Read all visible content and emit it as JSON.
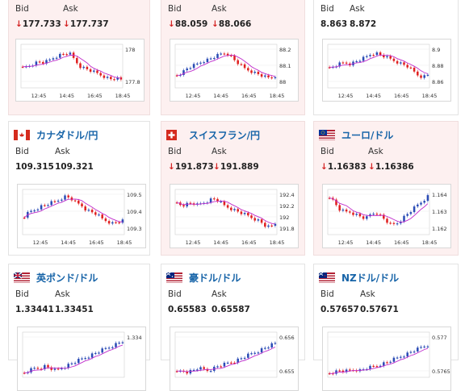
{
  "colors": {
    "up": "#2a4bb5",
    "down": "#e02020",
    "ma": "#c02ccc",
    "link": "#1764a8",
    "bg_down": "#fdf0f0"
  },
  "labels": {
    "bid": "Bid",
    "ask": "Ask"
  },
  "cards": [
    {
      "id": "c0",
      "name": "",
      "bid": "177.733",
      "ask": "177.737",
      "trend": "down",
      "y_ticks": [
        "178",
        "177.8"
      ],
      "x_ticks": [
        "12:45",
        "14:45",
        "16:45",
        "18:45"
      ]
    },
    {
      "id": "c1",
      "name": "",
      "bid": "88.059",
      "ask": "88.066",
      "trend": "down",
      "y_ticks": [
        "88.2",
        "88.1",
        "88"
      ],
      "x_ticks": [
        "12:45",
        "14:45",
        "16:45",
        "18:45"
      ]
    },
    {
      "id": "c2",
      "name": "",
      "bid": "8.863",
      "ask": "8.872",
      "trend": "none",
      "y_ticks": [
        "8.9",
        "8.88",
        "8.86"
      ],
      "x_ticks": [
        "12:45",
        "14:45",
        "16:45",
        "18:45"
      ]
    },
    {
      "id": "c3",
      "name": "カナダドル/円",
      "flag_icon": "canada-flag-icon",
      "bid": "109.315",
      "ask": "109.321",
      "trend": "none",
      "y_ticks": [
        "109.5",
        "109.4",
        "109.3"
      ],
      "x_ticks": [
        "12:45",
        "14:45",
        "16:45",
        "18:45"
      ]
    },
    {
      "id": "c4",
      "name": "スイスフラン/円",
      "flag_icon": "switzerland-flag-icon",
      "bid": "191.873",
      "ask": "191.889",
      "trend": "down",
      "y_ticks": [
        "192.4",
        "192.2",
        "192",
        "191.8"
      ],
      "x_ticks": [
        "12:45",
        "14:45",
        "16:45",
        "18:45"
      ]
    },
    {
      "id": "c5",
      "name": "ユーロ/ドル",
      "flag_icon": "eu-us-flag-icon",
      "bid": "1.16383",
      "ask": "1.16386",
      "trend": "down",
      "y_ticks": [
        "1.164",
        "1.163",
        "1.162"
      ],
      "x_ticks": [
        "12:45",
        "14:45",
        "16:45",
        "18:45"
      ]
    },
    {
      "id": "c6",
      "name": "英ポンド/ドル",
      "flag_icon": "uk-us-flag-icon",
      "bid": "1.33441",
      "ask": "1.33451",
      "trend": "none",
      "y_ticks": [
        "1.334"
      ],
      "x_ticks": []
    },
    {
      "id": "c7",
      "name": "豪ドル/ドル",
      "flag_icon": "au-us-flag-icon",
      "bid": "0.65583",
      "ask": "0.65587",
      "trend": "none",
      "y_ticks": [
        "0.656",
        "0.655"
      ],
      "x_ticks": []
    },
    {
      "id": "c8",
      "name": "NZドル/ドル",
      "flag_icon": "nz-us-flag-icon",
      "bid": "0.57657",
      "ask": "0.57671",
      "trend": "none",
      "y_ticks": [
        "0.577",
        "0.5765"
      ],
      "x_ticks": []
    }
  ]
}
